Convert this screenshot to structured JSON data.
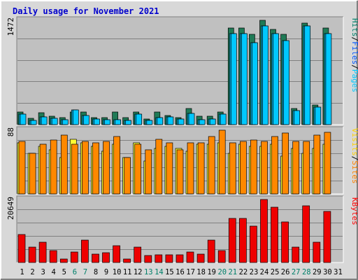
{
  "chart_data": [
    {
      "type": "bar",
      "panel": "pages-files-hits",
      "title": "Daily usage for November 2021",
      "ylabel_segments": [
        {
          "text": "Pages",
          "color": "#00c8ff"
        },
        {
          "text": "/",
          "color": "#000000"
        },
        {
          "text": "Files",
          "color": "#0055ff"
        },
        {
          "text": "/",
          "color": "#000000"
        },
        {
          "text": "Hits",
          "color": "#00806a"
        }
      ],
      "ytick_max_label": "1472",
      "ylim": [
        0,
        1472
      ],
      "grid": true,
      "categories": [
        "1",
        "2",
        "3",
        "4",
        "5",
        "6",
        "7",
        "8",
        "9",
        "10",
        "11",
        "12",
        "13",
        "14",
        "15",
        "16",
        "17",
        "18",
        "19",
        "20",
        "21",
        "22",
        "23",
        "24",
        "25",
        "26",
        "27",
        "28",
        "29",
        "30",
        "31"
      ],
      "series": [
        {
          "name": "Hits",
          "color": "#1f7a56",
          "values": [
            180,
            90,
            170,
            120,
            100,
            180,
            180,
            100,
            100,
            180,
            100,
            180,
            80,
            180,
            130,
            100,
            230,
            120,
            120,
            180,
            1350,
            1350,
            1270,
            1460,
            1330,
            1270,
            230,
            1420,
            270,
            1350,
            0
          ]
        },
        {
          "name": "Files",
          "color": "#00a8d8",
          "values": [
            150,
            60,
            110,
            90,
            70,
            210,
            130,
            80,
            70,
            70,
            60,
            150,
            60,
            100,
            110,
            80,
            160,
            70,
            80,
            150,
            1280,
            1280,
            1150,
            1380,
            1280,
            1180,
            200,
            1380,
            250,
            1280,
            0
          ]
        },
        {
          "name": "Pages",
          "color": "#00c8ff",
          "values": [
            150,
            60,
            110,
            90,
            70,
            210,
            130,
            80,
            70,
            70,
            60,
            150,
            60,
            100,
            110,
            80,
            160,
            70,
            80,
            150,
            1280,
            1280,
            1150,
            1380,
            1280,
            1180,
            200,
            1380,
            250,
            1280,
            0
          ]
        }
      ]
    },
    {
      "type": "bar",
      "panel": "visits-sites",
      "ylabel_segments": [
        {
          "text": "Sites",
          "color": "#ff8000"
        },
        {
          "text": "/",
          "color": "#000000"
        },
        {
          "text": "Visits",
          "color": "#ffd000"
        }
      ],
      "ytick_max_label": "88",
      "ylim": [
        0,
        88
      ],
      "grid": true,
      "categories": [
        "1",
        "2",
        "3",
        "4",
        "5",
        "6",
        "7",
        "8",
        "9",
        "10",
        "11",
        "12",
        "13",
        "14",
        "15",
        "16",
        "17",
        "18",
        "19",
        "20",
        "21",
        "22",
        "23",
        "24",
        "25",
        "26",
        "27",
        "28",
        "29",
        "30",
        "31"
      ],
      "series": [
        {
          "name": "Visits",
          "color": "#ffff33",
          "values": [
            70,
            55,
            65,
            60,
            50,
            75,
            70,
            65,
            58,
            68,
            50,
            70,
            45,
            62,
            65,
            62,
            58,
            68,
            68,
            70,
            55,
            68,
            65,
            65,
            68,
            52,
            62,
            55,
            62,
            68,
            0
          ]
        },
        {
          "name": "Sites",
          "color": "#ff8800",
          "values": [
            72,
            55,
            68,
            74,
            80,
            68,
            72,
            70,
            72,
            78,
            50,
            68,
            60,
            75,
            70,
            60,
            70,
            70,
            78,
            87,
            70,
            72,
            74,
            72,
            78,
            83,
            72,
            72,
            80,
            84,
            0
          ]
        }
      ]
    },
    {
      "type": "bar",
      "panel": "kbytes",
      "ylabel_segments": [
        {
          "text": "KBytes",
          "color": "#ff0000"
        }
      ],
      "ytick_max_label": "20649",
      "ylim": [
        0,
        20649
      ],
      "grid": true,
      "categories": [
        "1",
        "2",
        "3",
        "4",
        "5",
        "6",
        "7",
        "8",
        "9",
        "10",
        "11",
        "12",
        "13",
        "14",
        "15",
        "16",
        "17",
        "18",
        "19",
        "20",
        "21",
        "22",
        "23",
        "24",
        "25",
        "26",
        "27",
        "28",
        "29",
        "30",
        "31"
      ],
      "series": [
        {
          "name": "KBytes",
          "color": "#ee0000",
          "values": [
            9000,
            5000,
            6500,
            3800,
            1200,
            3500,
            7300,
            2700,
            3100,
            5500,
            1200,
            5000,
            2200,
            2600,
            2400,
            2600,
            3400,
            2700,
            7300,
            3800,
            14200,
            14200,
            11900,
            20500,
            18000,
            13200,
            5000,
            18300,
            6500,
            16500,
            0
          ]
        }
      ]
    }
  ],
  "x_day_labels": [
    {
      "text": "1",
      "color": "#000000"
    },
    {
      "text": "2",
      "color": "#000000"
    },
    {
      "text": "3",
      "color": "#000000"
    },
    {
      "text": "4",
      "color": "#000000"
    },
    {
      "text": "5",
      "color": "#000000"
    },
    {
      "text": "6",
      "color": "#00806a"
    },
    {
      "text": "7",
      "color": "#00806a"
    },
    {
      "text": "8",
      "color": "#000000"
    },
    {
      "text": "9",
      "color": "#000000"
    },
    {
      "text": "10",
      "color": "#000000"
    },
    {
      "text": "11",
      "color": "#000000"
    },
    {
      "text": "12",
      "color": "#000000"
    },
    {
      "text": "13",
      "color": "#00806a"
    },
    {
      "text": "14",
      "color": "#00806a"
    },
    {
      "text": "15",
      "color": "#000000"
    },
    {
      "text": "16",
      "color": "#000000"
    },
    {
      "text": "17",
      "color": "#000000"
    },
    {
      "text": "18",
      "color": "#000000"
    },
    {
      "text": "19",
      "color": "#000000"
    },
    {
      "text": "20",
      "color": "#00806a"
    },
    {
      "text": "21",
      "color": "#00806a"
    },
    {
      "text": "22",
      "color": "#000000"
    },
    {
      "text": "23",
      "color": "#000000"
    },
    {
      "text": "24",
      "color": "#000000"
    },
    {
      "text": "25",
      "color": "#000000"
    },
    {
      "text": "26",
      "color": "#000000"
    },
    {
      "text": "27",
      "color": "#00806a"
    },
    {
      "text": "28",
      "color": "#00806a"
    },
    {
      "text": "29",
      "color": "#000000"
    },
    {
      "text": "30",
      "color": "#000000"
    },
    {
      "text": "31",
      "color": "#000000"
    }
  ],
  "colors": {
    "panel_bg": "#c0c0c0",
    "outer_bg": "#d8d8d8",
    "grid": "#808080",
    "title": "#0000cc",
    "bar_outline": "#000000"
  }
}
